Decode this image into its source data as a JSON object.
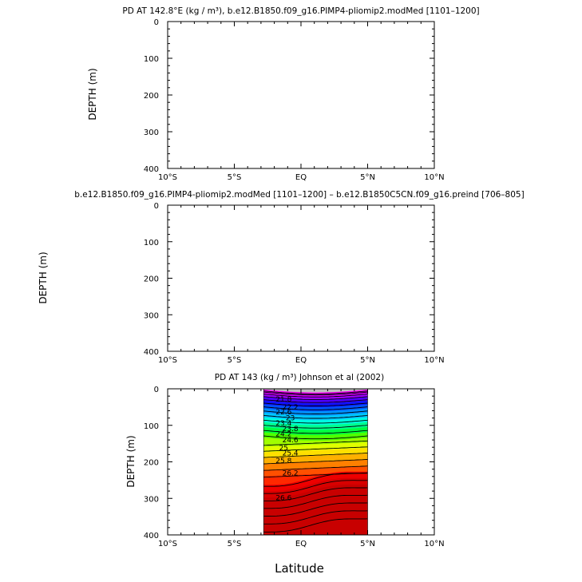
{
  "chart_data": [
    {
      "type": "heatmap",
      "title": "PD AT 142.8°E (kg / m³), b.e12.B1850.f09_g16.PIMP4-pliomip2.modMed [1101–1200]",
      "ylabel": "DEPTH (m)",
      "xlabel": "",
      "x_ticks": [
        "10°S",
        "5°S",
        "EQ",
        "5°N",
        "10°N"
      ],
      "y_ticks": [
        "0",
        "100",
        "200",
        "300",
        "400"
      ],
      "xlim": [
        -10,
        10
      ],
      "ylim": [
        400,
        0
      ],
      "values": []
    },
    {
      "type": "heatmap",
      "title": "b.e12.B1850.f09_g16.PIMP4-pliomip2.modMed [1101–1200] – b.e12.B1850C5CN.f09_g16.preind [706–805]",
      "ylabel": "DEPTH (m)",
      "xlabel": "",
      "x_ticks": [
        "10°S",
        "5°S",
        "EQ",
        "5°N",
        "10°N"
      ],
      "y_ticks": [
        "0",
        "100",
        "200",
        "300",
        "400"
      ],
      "xlim": [
        -10,
        10
      ],
      "ylim": [
        400,
        0
      ],
      "values": []
    },
    {
      "type": "heatmap",
      "title": "PD AT 143 (kg / m³) Johnson et al (2002)",
      "ylabel": "DEPTH (m)",
      "xlabel": "Latitude",
      "x_ticks": [
        "10°S",
        "5°S",
        "EQ",
        "5°N",
        "10°N"
      ],
      "y_ticks": [
        "0",
        "100",
        "200",
        "300",
        "400"
      ],
      "xlim": [
        -10,
        10
      ],
      "ylim": [
        400,
        0
      ],
      "data_range_lat": [
        -2.8,
        5
      ],
      "contour_levels": [
        "21.8",
        "22.2",
        "22.6",
        "23",
        "23.4",
        "23.8",
        "24.2",
        "24.6",
        "25",
        "25.4",
        "25.8",
        "26.2",
        "26.6"
      ],
      "contour_depths": [
        30,
        50,
        65,
        80,
        95,
        110,
        125,
        140,
        160,
        175,
        195,
        230,
        290
      ],
      "fill_colors": [
        "#ff00ff",
        "#d800ff",
        "#a000ff",
        "#5000ff",
        "#1010ff",
        "#0050ff",
        "#0090ff",
        "#00c8ff",
        "#00ffe0",
        "#00ff90",
        "#00ff40",
        "#50ff00",
        "#a0ff00",
        "#e0ff00",
        "#ffe000",
        "#ffb000",
        "#ff8000",
        "#ff5000",
        "#ff2800",
        "#ee0000",
        "#d80000",
        "#c80000"
      ],
      "missing_color": "#bfbfbf"
    }
  ]
}
